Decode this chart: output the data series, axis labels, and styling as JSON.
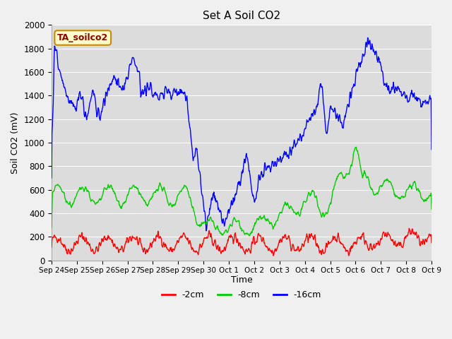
{
  "title": "Set A Soil CO2",
  "ylabel": "Soil CO2 (mV)",
  "xlabel": "Time",
  "label_box_text": "TA_soilco2",
  "legend_labels": [
    "-2cm",
    "-8cm",
    "-16cm"
  ],
  "legend_colors": [
    "#ff0000",
    "#00cc00",
    "#0000ff"
  ],
  "line_colors": [
    "#ff0000",
    "#00cc00",
    "#0000ff"
  ],
  "ylim": [
    0,
    2000
  ],
  "xtick_labels": [
    "Sep 24",
    "Sep 25",
    "Sep 26",
    "Sep 27",
    "Sep 28",
    "Sep 29",
    "Sep 30",
    "Oct 1",
    "Oct 2",
    "Oct 3",
    "Oct 4",
    "Oct 5",
    "Oct 6",
    "Oct 7",
    "Oct 8",
    "Oct 9"
  ],
  "bg_color": "#dcdcdc",
  "grid_color": "#ffffff",
  "title_fontsize": 11,
  "axis_label_fontsize": 9
}
